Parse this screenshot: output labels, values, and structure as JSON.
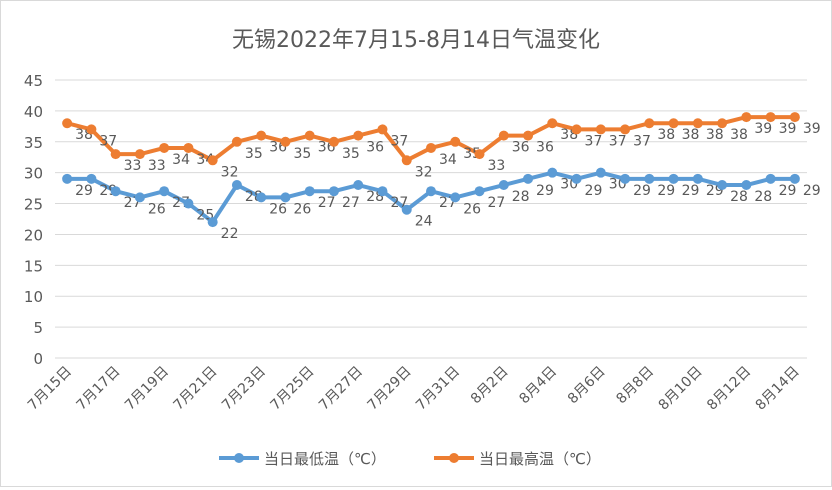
{
  "chart_data": {
    "type": "line",
    "title": "无锡2022年7月15-8月14日气温变化",
    "xlabel": "",
    "ylabel": "",
    "ylim": [
      0,
      45
    ],
    "yticks": [
      0,
      5,
      10,
      15,
      20,
      25,
      30,
      35,
      40,
      45
    ],
    "grid": true,
    "legend": "bottom",
    "categories": [
      "7月15日",
      "7月16日",
      "7月17日",
      "7月18日",
      "7月19日",
      "7月20日",
      "7月21日",
      "7月22日",
      "7月23日",
      "7月24日",
      "7月25日",
      "7月26日",
      "7月27日",
      "7月28日",
      "7月29日",
      "7月30日",
      "7月31日",
      "8月1日",
      "8月2日",
      "8月3日",
      "8月4日",
      "8月5日",
      "8月6日",
      "8月7日",
      "8月8日",
      "8月9日",
      "8月10日",
      "8月11日",
      "8月12日",
      "8月13日",
      "8月14日"
    ],
    "series": [
      {
        "name": "当日最低温（℃）",
        "color": "#5b9bd5",
        "values": [
          29,
          29,
          27,
          26,
          27,
          25,
          22,
          28,
          26,
          26,
          27,
          27,
          28,
          27,
          24,
          27,
          26,
          27,
          28,
          29,
          30,
          29,
          30,
          29,
          29,
          29,
          29,
          28,
          28,
          29,
          29
        ]
      },
      {
        "name": "当日最高温（℃）",
        "color": "#ed7d31",
        "values": [
          38,
          37,
          33,
          33,
          34,
          34,
          32,
          35,
          36,
          35,
          36,
          35,
          36,
          37,
          32,
          34,
          35,
          33,
          36,
          36,
          38,
          37,
          37,
          37,
          38,
          38,
          38,
          38,
          39,
          39,
          39
        ]
      }
    ]
  }
}
